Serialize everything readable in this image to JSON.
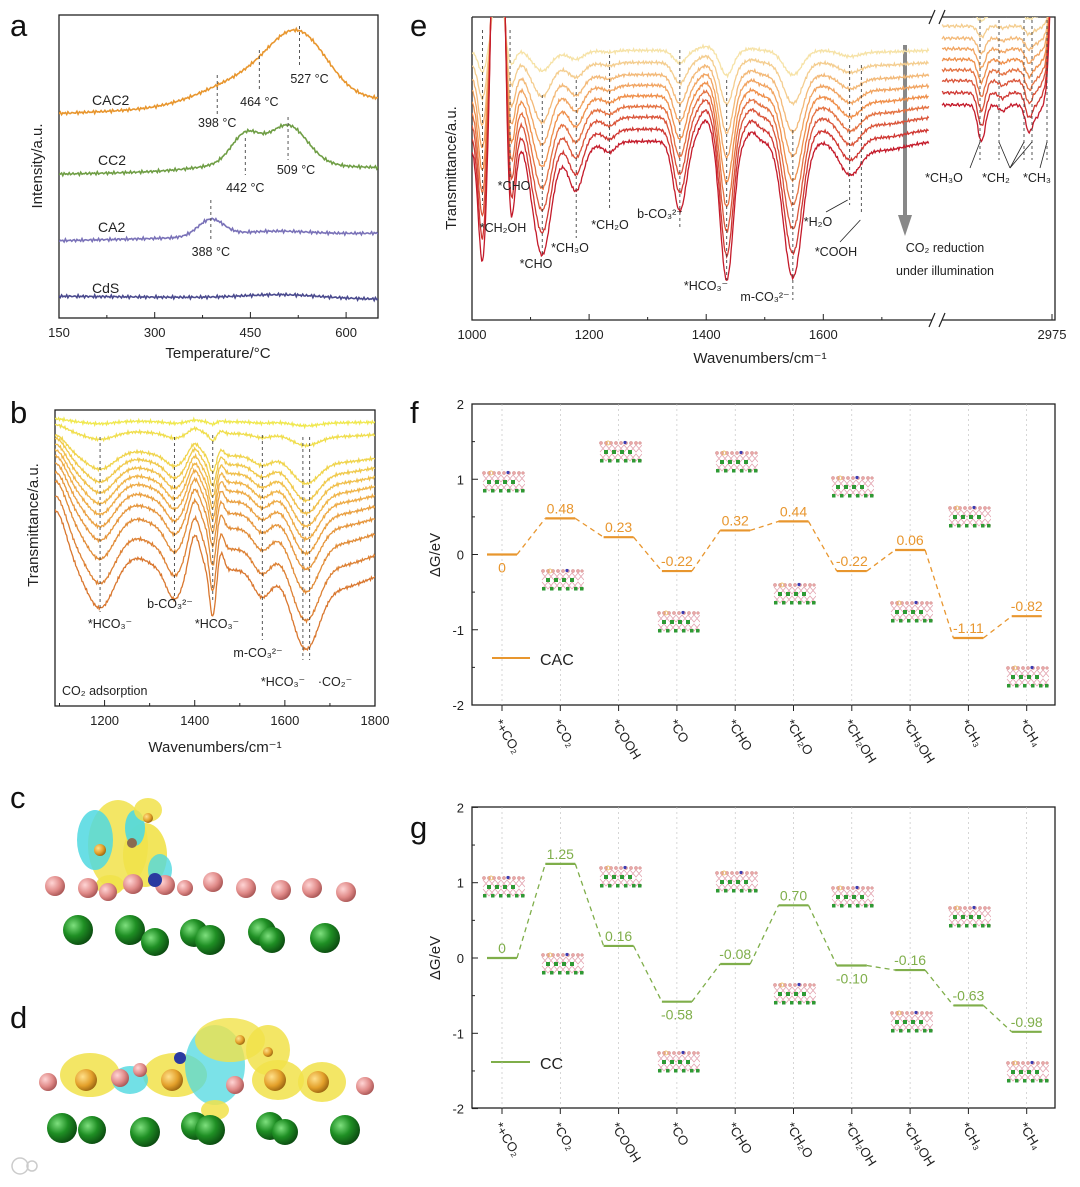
{
  "panel_labels": {
    "a": "a",
    "b": "b",
    "c": "c",
    "d": "d",
    "e": "e",
    "f": "f",
    "g": "g"
  },
  "chart_data": [
    {
      "id": "a",
      "type": "line",
      "xlabel": "Temperature/°C",
      "ylabel": "Intensity/a.u.",
      "xlim": [
        150,
        650
      ],
      "ylim": [
        0,
        10
      ],
      "xticks": [
        150,
        300,
        450,
        600
      ],
      "tick_labels": [
        "150",
        "300",
        "450",
        "600"
      ],
      "series": [
        {
          "name": "CAC2",
          "color": "#e8962e",
          "offset": 6.75,
          "slope": 0.45,
          "peaks": [
            [
              450,
              0.9,
              70
            ],
            [
              527,
              1.9,
              45
            ]
          ]
        },
        {
          "name": "CC2",
          "color": "#6f9e45",
          "offset": 4.75,
          "slope": 0.2,
          "peaks": [
            [
              442,
              0.9,
              22
            ],
            [
              509,
              1.2,
              30
            ],
            [
              470,
              0.3,
              80
            ]
          ]
        },
        {
          "name": "CA2",
          "color": "#7a72b8",
          "offset": 2.55,
          "slope": 0.25,
          "peaks": [
            [
              388,
              0.55,
              20
            ],
            [
              480,
              0.15,
              60
            ]
          ]
        },
        {
          "name": "CdS",
          "color": "#4a4a8e",
          "offset": 0.72,
          "slope": -0.1,
          "peaks": [
            [
              500,
              0.12,
              60
            ]
          ]
        }
      ],
      "annotations": [
        {
          "series": 0,
          "x": 398,
          "label": "398 °C"
        },
        {
          "series": 0,
          "x": 464,
          "label": "464 °C"
        },
        {
          "series": 0,
          "x": 527,
          "label": "527 °C"
        },
        {
          "series": 1,
          "x": 442,
          "label": "442 °C"
        },
        {
          "series": 1,
          "x": 509,
          "label": "509 °C"
        },
        {
          "series": 2,
          "x": 388,
          "label": "388 °C"
        }
      ]
    },
    {
      "id": "b",
      "type": "line",
      "xlabel": "Wavenumbers/cm⁻¹",
      "ylabel": "Transmittance/a.u.",
      "xlim": [
        1090,
        1800
      ],
      "ylim": [
        0,
        10
      ],
      "xticks": [
        1200,
        1400,
        1600,
        1800
      ],
      "tick_labels": [
        "1200",
        "1400",
        "1600",
        "1800"
      ],
      "curve_count": 12,
      "offsets": [
        9.6,
        9.2,
        8.45,
        8.15,
        7.85,
        7.55,
        7.25,
        6.9,
        6.5,
        6.0,
        5.3,
        4.6
      ],
      "intensity": [
        0.05,
        0.15,
        0.35,
        0.45,
        0.5,
        0.55,
        0.6,
        0.65,
        0.7,
        0.8,
        0.9,
        1.0
      ],
      "colors": [
        "#f0e84e",
        "#f0b048",
        "#d9772f"
      ],
      "bands": [
        [
          1090,
          2.0,
          25
        ],
        [
          1190,
          -1.3,
          28
        ],
        [
          1270,
          0.4,
          30
        ],
        [
          1355,
          -1.0,
          18
        ],
        [
          1400,
          1.2,
          12
        ],
        [
          1440,
          -1.6,
          7
        ],
        [
          1458,
          0.6,
          7
        ],
        [
          1550,
          -0.9,
          20
        ],
        [
          1645,
          -2.4,
          30
        ],
        [
          1720,
          -0.6,
          60
        ]
      ],
      "annotations": [
        {
          "x": 1190,
          "label": "*HCO₃⁻"
        },
        {
          "x": 1355,
          "label": "b-CO₃²⁻"
        },
        {
          "x": 1440,
          "label": "*HCO₃⁻"
        },
        {
          "x": 1550,
          "label": "m-CO₃²⁻"
        },
        {
          "x": 1640,
          "label": "*HCO₃⁻"
        },
        {
          "x": 1655,
          "label": "·CO₂⁻"
        }
      ],
      "note": "CO₂ adsorption"
    },
    {
      "id": "e",
      "type": "line",
      "xlabel": "Wavenumbers/cm⁻¹",
      "ylabel": "Transmittance/a.u.",
      "xlim": [
        1000,
        1780
      ],
      "xlim_right": [
        2830,
        2975
      ],
      "ylim": [
        0,
        10
      ],
      "xticks": [
        1000,
        1200,
        1400,
        1600
      ],
      "tick_labels": [
        "1000",
        "1200",
        "1400",
        "1600"
      ],
      "xticks_right": [
        2975
      ],
      "tick_labels_right": [
        "2975"
      ],
      "curve_count": 9,
      "offsets": [
        8.9,
        8.5,
        8.1,
        7.75,
        7.4,
        7.05,
        6.7,
        6.3,
        5.9
      ],
      "intensity": [
        0.18,
        0.3,
        0.42,
        0.52,
        0.62,
        0.72,
        0.82,
        0.91,
        1.0
      ],
      "right_shift": 1.2,
      "colors": [
        "#f6e2a6",
        "#ef8f4a",
        "#c41a2a"
      ],
      "bands": [
        [
          1018,
          -3.8,
          7
        ],
        [
          1045,
          14,
          9
        ],
        [
          1065,
          -2.6,
          7
        ],
        [
          1085,
          0.6,
          8
        ],
        [
          1100,
          -0.8,
          60
        ],
        [
          1120,
          -3.0,
          14
        ],
        [
          1178,
          -1.3,
          12
        ],
        [
          1235,
          -0.3,
          10
        ],
        [
          1355,
          -2.3,
          11
        ],
        [
          1400,
          0.7,
          12
        ],
        [
          1435,
          -4.6,
          11
        ],
        [
          1478,
          0.3,
          8
        ],
        [
          1548,
          -4.5,
          16
        ],
        [
          1645,
          -1.0,
          18
        ],
        [
          1700,
          -0.3,
          40
        ]
      ],
      "bands_right": [
        [
          2882,
          -1.2,
          5
        ],
        [
          2910,
          -0.2,
          5
        ],
        [
          2945,
          -0.9,
          5
        ],
        [
          2956,
          -0.3,
          4
        ],
        [
          2978,
          6,
          5
        ]
      ],
      "annotations": [
        {
          "x": 1018,
          "label": "*CH₂OH"
        },
        {
          "x": 1065,
          "label": "*CHO"
        },
        {
          "x": 1120,
          "label": "*CHO"
        },
        {
          "x": 1178,
          "label": "*CH₃O"
        },
        {
          "x": 1235,
          "label": "*CH₂O"
        },
        {
          "x": 1355,
          "label": "b-CO₃²⁻"
        },
        {
          "x": 1435,
          "label": "*HCO₃⁻"
        },
        {
          "x": 1548,
          "label": "m-CO₃²⁻"
        },
        {
          "x": 1645,
          "label": "*H₂O"
        },
        {
          "x": 1665,
          "label": "*COOH"
        }
      ],
      "annotations_right": [
        "*CH₃O",
        "*CH₂",
        "*CH₃"
      ],
      "arrow_label": [
        "CO₂ reduction",
        "under illumination"
      ]
    },
    {
      "id": "f",
      "type": "energy-diagram",
      "ylabel": "ΔG/eV",
      "ylim": [
        -2,
        2
      ],
      "yticks": [
        -2,
        -1,
        0,
        1,
        2
      ],
      "ytick_labels": [
        "-2",
        "-1",
        "0",
        "1",
        "2"
      ],
      "categories": [
        "*+CO₂",
        "*CO₂",
        "*COOH",
        "*CO",
        "*CHO",
        "*CH₂O",
        "*CH₂OH",
        "*CH₃OH",
        "*CH₃",
        "*CH₄"
      ],
      "series": [
        {
          "name": "CAC",
          "color": "#e8962e",
          "values": [
            0,
            0.48,
            0.23,
            -0.22,
            0.32,
            0.44,
            -0.22,
            0.06,
            -1.11,
            -0.82
          ],
          "labels": [
            "0",
            "0.48",
            "0.23",
            "-0.22",
            "0.32",
            "0.44",
            "-0.22",
            "0.06",
            "-1.11",
            "-0.82"
          ]
        }
      ]
    },
    {
      "id": "g",
      "type": "energy-diagram",
      "ylabel": "ΔG/eV",
      "ylim": [
        -2,
        2
      ],
      "yticks": [
        -2,
        -1,
        0,
        1,
        2
      ],
      "ytick_labels": [
        "-2",
        "-1",
        "0",
        "1",
        "2"
      ],
      "categories": [
        "*+CO₂",
        "*CO₂",
        "*COOH",
        "*CO",
        "*CHO",
        "*CH₂O",
        "*CH₂OH",
        "*CH₃OH",
        "*CH₃",
        "*CH₄"
      ],
      "series": [
        {
          "name": "CC",
          "color": "#7fae4a",
          "values": [
            0,
            1.25,
            0.16,
            -0.58,
            -0.08,
            0.7,
            -0.1,
            -0.16,
            -0.63,
            -0.98
          ],
          "labels": [
            "0",
            "1.25",
            "0.16",
            "-0.58",
            "-0.08",
            "0.70",
            "-0.10",
            "-0.16",
            "-0.63",
            "-0.98"
          ]
        }
      ]
    }
  ]
}
